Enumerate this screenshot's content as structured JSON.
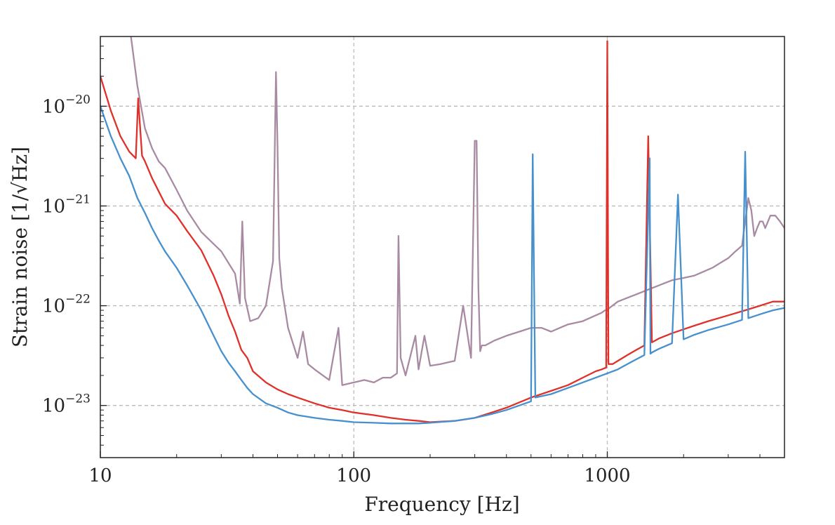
{
  "chart_data": {
    "type": "line",
    "title": "",
    "xlabel": "Frequency [Hz]",
    "ylabel": "Strain noise [1/√Hz]",
    "x_scale": "log",
    "y_scale": "log",
    "xlim": [
      10,
      5000
    ],
    "ylim": [
      3e-24,
      5e-20
    ],
    "grid": true,
    "legend": "none",
    "x_ticks": [
      {
        "value": 10,
        "label": "10"
      },
      {
        "value": 100,
        "label": "100"
      },
      {
        "value": 1000,
        "label": "1000"
      }
    ],
    "y_ticks": [
      {
        "value": 1e-23,
        "base": "10",
        "exp": "−23"
      },
      {
        "value": 1e-22,
        "base": "10",
        "exp": "−22"
      },
      {
        "value": 1e-21,
        "base": "10",
        "exp": "−21"
      },
      {
        "value": 1e-20,
        "base": "10",
        "exp": "−20"
      }
    ],
    "series": [
      {
        "color": "#a98aa3",
        "x": [
          13.2,
          14,
          15,
          16,
          17,
          18,
          20,
          22,
          25,
          30,
          34,
          35.5,
          36.3,
          37.2,
          39,
          42,
          45,
          48,
          49.3,
          50,
          50.8,
          52,
          55,
          60,
          63,
          66,
          70,
          80,
          87,
          90,
          100,
          110,
          120,
          130,
          140,
          148,
          150,
          153,
          160,
          175,
          180,
          190,
          200,
          220,
          250,
          270,
          290,
          300,
          305,
          310,
          315,
          320,
          330,
          360,
          400,
          450,
          500,
          550,
          600,
          650,
          700,
          800,
          900,
          950,
          980,
          1000,
          1020,
          1100,
          1200,
          1300,
          1400,
          1500,
          1600,
          1700,
          1800,
          2000,
          2200,
          2400,
          2600,
          2800,
          3000,
          3200,
          3400,
          3500,
          3600,
          3700,
          3800,
          3900,
          4000,
          4100,
          4200,
          4400,
          4600,
          4800,
          5000
        ],
        "y": [
          5e-20,
          1.6e-20,
          6e-21,
          3.8e-21,
          2.8e-21,
          2.4e-21,
          1.45e-21,
          9e-22,
          5.5e-22,
          3.5e-22,
          2.1e-22,
          1.05e-22,
          7e-22,
          1.2e-22,
          7e-23,
          7.5e-23,
          1e-22,
          2.8e-22,
          2.2e-20,
          4e-21,
          3e-22,
          1.5e-22,
          6e-23,
          3e-23,
          5.5e-23,
          2.6e-23,
          2.3e-23,
          1.8e-23,
          6e-23,
          1.6e-23,
          1.7e-23,
          1.8e-23,
          1.7e-23,
          1.9e-23,
          1.9e-23,
          2.1e-23,
          5e-22,
          3e-23,
          2e-23,
          5e-23,
          2.3e-23,
          5e-23,
          2.5e-23,
          2.6e-23,
          2.8e-23,
          1e-22,
          3e-23,
          4.5e-21,
          4.5e-21,
          1.5e-22,
          3.5e-23,
          4e-23,
          4e-23,
          4.5e-23,
          5e-23,
          5.5e-23,
          6e-23,
          6e-23,
          5.5e-23,
          6e-23,
          6.5e-23,
          7e-23,
          8e-23,
          8.5e-23,
          9e-23,
          9e-23,
          9.5e-23,
          1.1e-22,
          1.2e-22,
          1.3e-22,
          1.4e-22,
          1.5e-22,
          1.6e-22,
          1.7e-22,
          1.8e-22,
          1.9e-22,
          2e-22,
          2.2e-22,
          2.4e-22,
          2.7e-22,
          3e-22,
          3.5e-22,
          4e-22,
          7e-22,
          1.2e-21,
          9e-22,
          5e-22,
          6e-22,
          7e-22,
          7e-22,
          6e-22,
          8e-22,
          8e-22,
          7e-22,
          6e-22
        ]
      },
      {
        "color": "#e0302a",
        "x": [
          10,
          11,
          12,
          13,
          13.8,
          14.1,
          14.6,
          15,
          16,
          17,
          18,
          20,
          22,
          25,
          28,
          30,
          32,
          34,
          36,
          38,
          40,
          45,
          50,
          55,
          60,
          70,
          80,
          90,
          100,
          120,
          140,
          160,
          180,
          200,
          250,
          300,
          350,
          400,
          500,
          600,
          700,
          800,
          900,
          950,
          990,
          1000,
          1010,
          1050,
          1100,
          1200,
          1300,
          1400,
          1450,
          1500,
          1600,
          1800,
          2000,
          2200,
          2500,
          3000,
          3500,
          4000,
          4500,
          5000
        ],
        "y": [
          2e-20,
          9e-21,
          5e-21,
          3.5e-21,
          3e-21,
          1.2e-20,
          3.2e-21,
          2.8e-21,
          1.9e-21,
          1.4e-21,
          1.05e-21,
          8e-22,
          5.6e-22,
          3.6e-22,
          2e-22,
          1.3e-22,
          8e-23,
          5.5e-23,
          3.6e-23,
          3e-23,
          2.2e-23,
          1.7e-23,
          1.45e-23,
          1.3e-23,
          1.2e-23,
          1.05e-23,
          9.5e-24,
          9e-24,
          8.5e-24,
          8e-24,
          7.5e-24,
          7.2e-24,
          7e-24,
          6.8e-24,
          7e-24,
          7.5e-24,
          8.5e-24,
          9.5e-24,
          1.2e-23,
          1.4e-23,
          1.6e-23,
          1.9e-23,
          2.2e-23,
          2.3e-23,
          2.4e-23,
          4.5e-20,
          2.6e-23,
          2.6e-23,
          2.8e-23,
          3.2e-23,
          3.6e-23,
          4e-23,
          5e-21,
          4.3e-23,
          4.7e-23,
          5.3e-23,
          5.8e-23,
          6.3e-23,
          7e-23,
          8e-23,
          9e-23,
          1e-22,
          1.1e-22,
          1.1e-22
        ]
      },
      {
        "color": "#4690cd",
        "x": [
          10,
          11,
          12,
          13,
          14,
          15,
          16,
          17,
          18,
          20,
          22,
          25,
          28,
          30,
          32,
          34,
          36,
          38,
          40,
          45,
          50,
          55,
          60,
          70,
          80,
          90,
          100,
          120,
          140,
          160,
          180,
          200,
          250,
          300,
          350,
          400,
          450,
          500,
          508,
          520,
          600,
          700,
          800,
          900,
          1000,
          1100,
          1200,
          1300,
          1400,
          1470,
          1480,
          1500,
          1600,
          1800,
          1900,
          2000,
          2200,
          2500,
          3000,
          3400,
          3500,
          3600,
          4000,
          4500,
          5000
        ],
        "y": [
          1e-20,
          5e-21,
          3e-21,
          2e-21,
          1.2e-21,
          8.5e-22,
          6e-22,
          4.5e-22,
          3.5e-22,
          2.4e-22,
          1.6e-22,
          9e-23,
          5e-23,
          3.5e-23,
          2.7e-23,
          2.2e-23,
          1.8e-23,
          1.5e-23,
          1.3e-23,
          1.05e-23,
          9.5e-24,
          8.5e-24,
          8e-24,
          7.5e-24,
          7.2e-24,
          7e-24,
          6.8e-24,
          6.7e-24,
          6.6e-24,
          6.6e-24,
          6.6e-24,
          6.7e-24,
          7e-24,
          7.5e-24,
          8.2e-24,
          9e-24,
          1e-23,
          1.1e-23,
          3.3e-21,
          1.2e-23,
          1.3e-23,
          1.5e-23,
          1.7e-23,
          1.9e-23,
          2.1e-23,
          2.3e-23,
          2.6e-23,
          2.9e-23,
          3.2e-23,
          3e-21,
          3.3e-23,
          3.4e-23,
          3.7e-23,
          4.2e-23,
          1.3e-21,
          4.6e-23,
          5.1e-23,
          5.7e-23,
          6.5e-23,
          7.2e-23,
          3.5e-21,
          7.5e-23,
          8.2e-23,
          9e-23,
          9.5e-23
        ]
      }
    ]
  }
}
